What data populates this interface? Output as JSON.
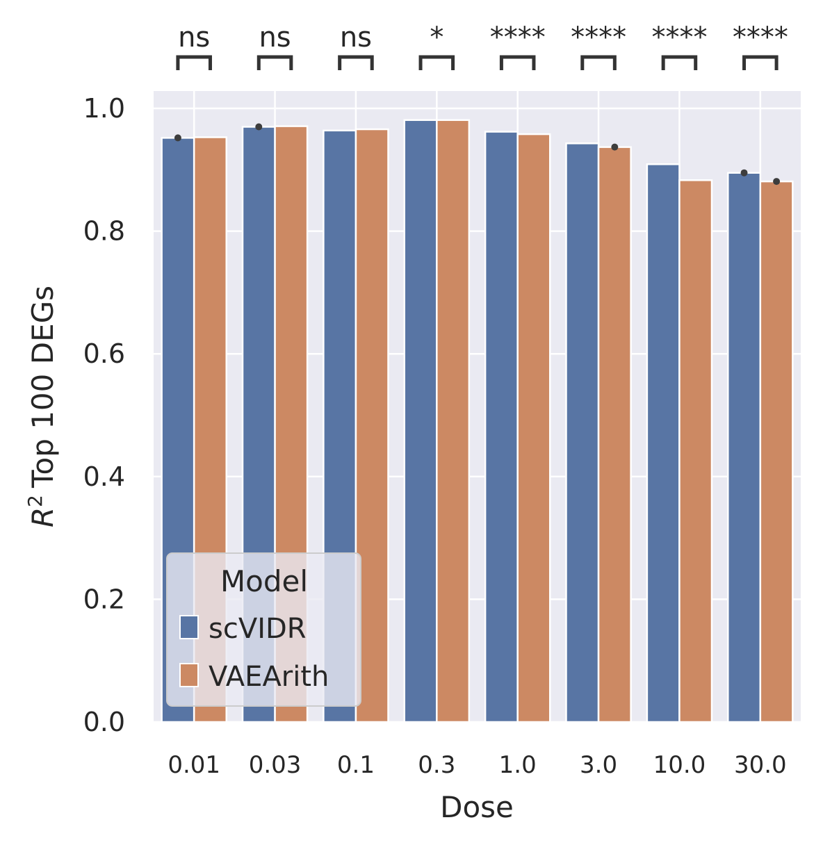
{
  "chart_data": {
    "type": "bar",
    "xlabel": "Dose",
    "ylabel_main": "Top 100 DEGs",
    "ylabel_symbol": "R",
    "ylabel_superscript": "2",
    "categories": [
      "0.01",
      "0.03",
      "0.1",
      "0.3",
      "1.0",
      "3.0",
      "10.0",
      "30.0"
    ],
    "series": [
      {
        "name": "scVIDR",
        "color": "#5875a4",
        "values": [
          0.952,
          0.97,
          0.964,
          0.981,
          0.962,
          0.943,
          0.909,
          0.895
        ]
      },
      {
        "name": "VAEArith",
        "color": "#cc8963",
        "values": [
          0.953,
          0.971,
          0.966,
          0.981,
          0.958,
          0.937,
          0.883,
          0.881
        ]
      }
    ],
    "error_points": [
      {
        "series": 0,
        "category": 0,
        "value": 0.952
      },
      {
        "series": 0,
        "category": 1,
        "value": 0.97
      },
      {
        "series": 1,
        "category": 5,
        "value": 0.937
      },
      {
        "series": 0,
        "category": 7,
        "value": 0.895
      },
      {
        "series": 1,
        "category": 7,
        "value": 0.881
      }
    ],
    "significance": [
      "ns",
      "ns",
      "ns",
      "*",
      "****",
      "****",
      "****",
      "****"
    ],
    "ylim": [
      0,
      1.03
    ],
    "yticks": [
      "0.0",
      "0.2",
      "0.4",
      "0.6",
      "0.8",
      "1.0"
    ],
    "ytick_values": [
      0.0,
      0.2,
      0.4,
      0.6,
      0.8,
      1.0
    ],
    "grid": true,
    "legend": {
      "title": "Model",
      "placement": "lower-left"
    }
  }
}
